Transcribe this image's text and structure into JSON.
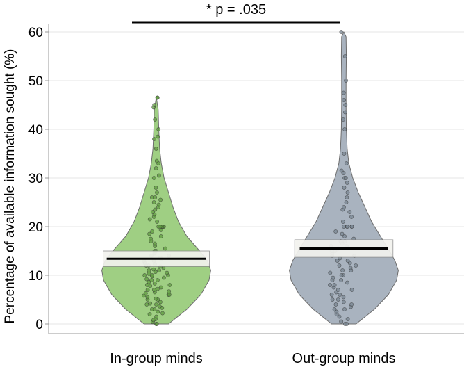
{
  "chart_data": {
    "type": "violin",
    "ylabel": "Percentage of available information sought (%)",
    "ylim": [
      0,
      60
    ],
    "yticks": [
      0,
      10,
      20,
      30,
      40,
      50,
      60
    ],
    "grid": true,
    "annotation": "* p = .035",
    "groups": [
      {
        "label": "In-group minds",
        "fill": "#9fcf83",
        "point_color": "#5f9a40",
        "mean": 13.4,
        "ci": [
          11.8,
          15.0
        ],
        "median": 11,
        "violin_halfwidth": [
          [
            0,
            0.22
          ],
          [
            3,
            0.55
          ],
          [
            6,
            0.8
          ],
          [
            9,
            0.95
          ],
          [
            11,
            0.98
          ],
          [
            13,
            0.92
          ],
          [
            15,
            0.78
          ],
          [
            18,
            0.55
          ],
          [
            21,
            0.4
          ],
          [
            24,
            0.3
          ],
          [
            27,
            0.22
          ],
          [
            30,
            0.14
          ],
          [
            33,
            0.09
          ],
          [
            36,
            0.06
          ],
          [
            40,
            0.045
          ],
          [
            44,
            0.035
          ],
          [
            46.6,
            0
          ]
        ],
        "points": [
          0,
          0,
          0.4,
          0.8,
          1,
          1.5,
          2,
          2.2,
          2.5,
          3,
          3,
          3.3,
          3.6,
          4,
          4,
          4.2,
          4.5,
          5,
          5,
          5.2,
          5.5,
          5.8,
          6,
          6,
          6.3,
          6.5,
          6.7,
          7,
          7,
          7.2,
          7.5,
          7.8,
          8,
          8,
          8.3,
          8.6,
          9,
          9,
          9.2,
          9.5,
          9.8,
          10,
          10,
          10,
          10.3,
          10.5,
          10.7,
          11,
          11,
          11.2,
          11.5,
          11.8,
          12,
          12,
          12.3,
          12.5,
          13,
          13,
          13.3,
          13.6,
          14,
          14,
          14.5,
          15,
          15,
          15.5,
          16,
          16.5,
          17,
          17.5,
          18,
          18.5,
          19,
          19.3,
          20,
          20,
          20,
          20,
          20,
          20,
          21,
          21.5,
          22,
          22.5,
          23,
          23.5,
          24,
          24.5,
          25,
          25.5,
          26,
          26,
          27,
          28,
          30,
          30.5,
          32,
          33,
          33.5,
          36,
          38,
          38.5,
          40,
          42,
          44.5,
          45,
          46.5,
          46.5
        ]
      },
      {
        "label": "Out-group minds",
        "fill": "#a9b3bf",
        "point_color": "#7a8592",
        "mean": 15.5,
        "ci": [
          13.7,
          17.3
        ],
        "median": 12,
        "violin_halfwidth": [
          [
            0,
            0.22
          ],
          [
            3,
            0.55
          ],
          [
            6,
            0.8
          ],
          [
            9,
            0.95
          ],
          [
            11,
            0.98
          ],
          [
            13,
            0.92
          ],
          [
            15,
            0.82
          ],
          [
            18,
            0.66
          ],
          [
            21,
            0.5
          ],
          [
            24,
            0.38
          ],
          [
            27,
            0.26
          ],
          [
            30,
            0.16
          ],
          [
            33,
            0.09
          ],
          [
            36,
            0.06
          ],
          [
            40,
            0.045
          ],
          [
            45,
            0.04
          ],
          [
            50,
            0.04
          ],
          [
            55,
            0.045
          ],
          [
            59,
            0.04
          ],
          [
            60,
            0
          ]
        ],
        "points": [
          0,
          0,
          0.5,
          1,
          1.5,
          2,
          2.5,
          3,
          3,
          3.5,
          4,
          4,
          4.5,
          5,
          5,
          5.5,
          6,
          6,
          6.5,
          7,
          7,
          7.5,
          8,
          8,
          8.5,
          9,
          9,
          9.5,
          10,
          10,
          10.5,
          11,
          11,
          11.5,
          12,
          12,
          12.5,
          13,
          13,
          13.5,
          14,
          14,
          14.5,
          15,
          15,
          15.5,
          16,
          16,
          16.5,
          17,
          17,
          17.5,
          18,
          18.5,
          19,
          20,
          20,
          20,
          20,
          20,
          21,
          22,
          23,
          23.5,
          24,
          25,
          26,
          27,
          28,
          29,
          30,
          30,
          31,
          31.5,
          33,
          35,
          40,
          42,
          43.5,
          45,
          46,
          47.5,
          50,
          55,
          60
        ]
      }
    ]
  }
}
